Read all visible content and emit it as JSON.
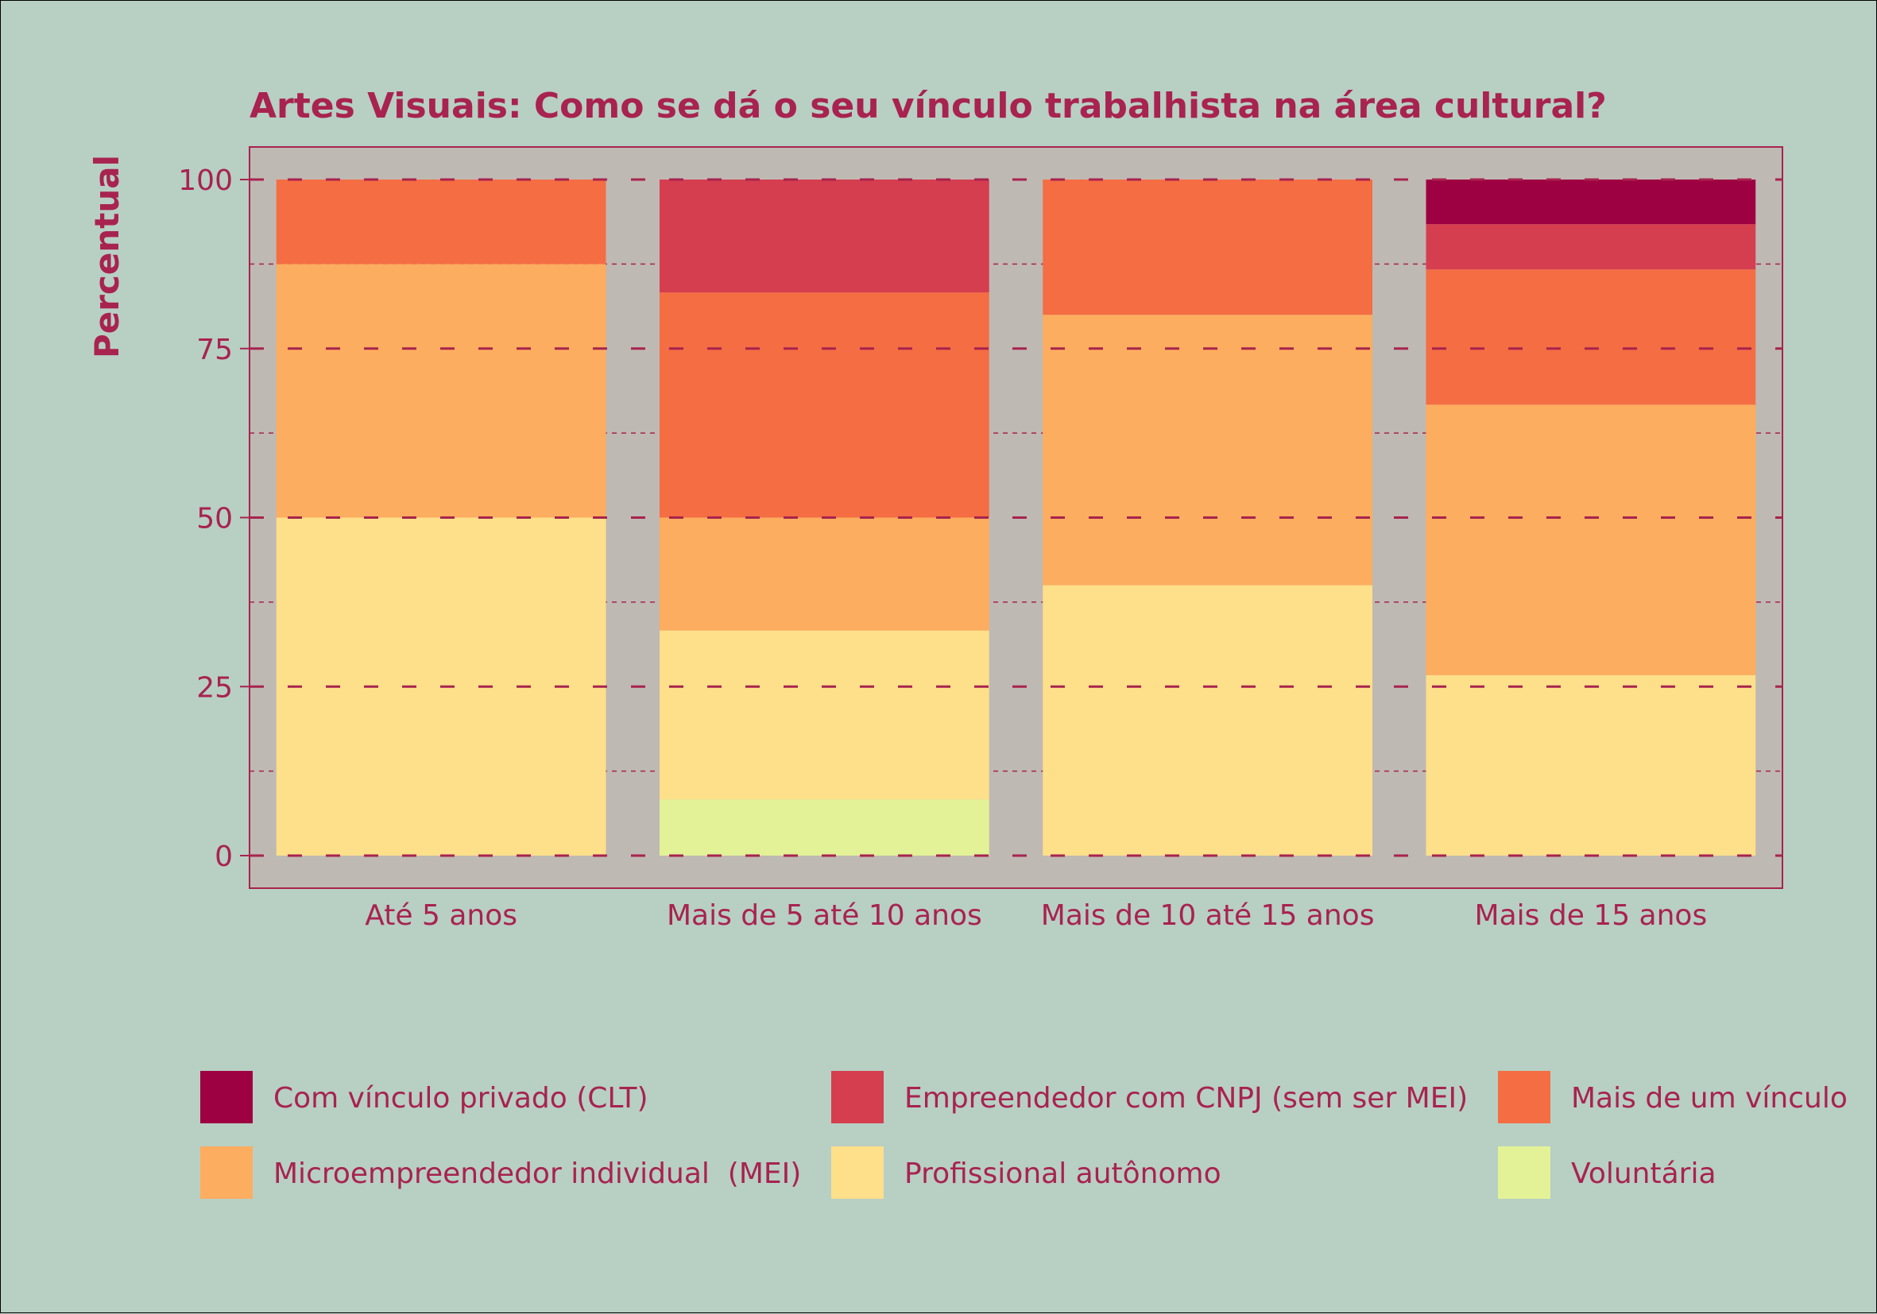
{
  "chart_data": {
    "type": "bar",
    "stacked": true,
    "title": "Artes Visuais: Como se dá o seu vínculo trabalhista na área cultural?",
    "xlabel": "",
    "ylabel": "Percentual",
    "ylim": [
      0,
      100
    ],
    "yticks": [
      "0",
      "25",
      "50",
      "75",
      "100"
    ],
    "grid": true,
    "legend_position": "bottom",
    "categories": [
      "Até 5 anos",
      "Mais de 5 até 10 anos",
      "Mais de 10 até 15 anos",
      "Mais de 15 anos"
    ],
    "series": [
      {
        "name": "Voluntária",
        "color": "#e3f297",
        "values": [
          0,
          8.3,
          0,
          0
        ]
      },
      {
        "name": "Profissional autônomo",
        "color": "#fedf8a",
        "values": [
          50,
          25,
          40,
          26.7
        ]
      },
      {
        "name": "Microempreendedor individual  (MEI)",
        "color": "#fdad5f",
        "values": [
          37.5,
          16.7,
          40,
          40
        ]
      },
      {
        "name": "Mais de um vínculo",
        "color": "#f46d43",
        "values": [
          12.5,
          33.3,
          20,
          20
        ]
      },
      {
        "name": "Empreendedor com CNPJ (sem ser MEI)",
        "color": "#d53e4f",
        "values": [
          0,
          16.7,
          0,
          6.7
        ]
      },
      {
        "name": "Com vínculo privado (CLT)",
        "color": "#9e0142",
        "values": [
          0,
          0,
          0,
          6.6
        ]
      }
    ],
    "legend_order": [
      "Com vínculo privado (CLT)",
      "Empreendedor com CNPJ (sem ser MEI)",
      "Mais de um vínculo",
      "Microempreendedor individual  (MEI)",
      "Profissional autônomo",
      "Voluntária"
    ]
  },
  "colors": {
    "background": "#b8cfc4",
    "panel": "#bfb9b3",
    "text": "#a8234f",
    "grid": "#a8234f"
  }
}
